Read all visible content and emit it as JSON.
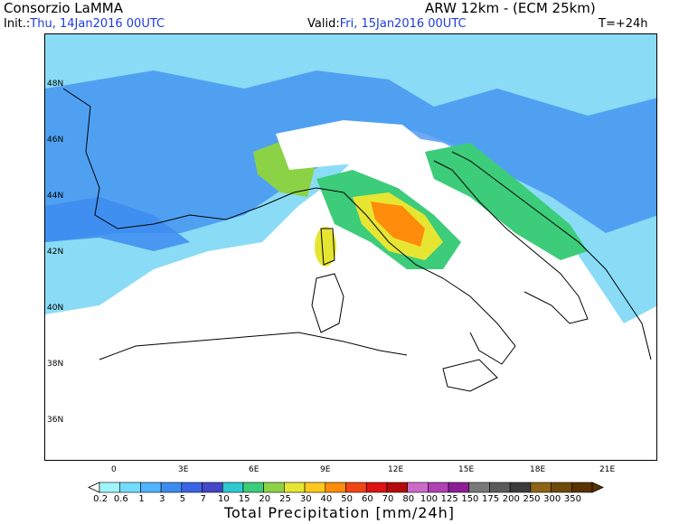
{
  "header": {
    "org": "Consorzio LaMMA",
    "model": "ARW 12km - (ECM 25km)",
    "init_label": "Init.:",
    "init_value": "Thu, 14Jan2016 00UTC",
    "valid_label": "Valid:",
    "valid_value": "Fri, 15Jan2016 00UTC",
    "lead": "T=+24h"
  },
  "axes": {
    "lat_labels": [
      "48N",
      "46N",
      "44N",
      "42N",
      "40N",
      "38N",
      "36N"
    ],
    "lon_labels": [
      "0",
      "3E",
      "6E",
      "9E",
      "12E",
      "15E",
      "18E",
      "21E"
    ]
  },
  "colorbar": {
    "title": "Total Precipitation [mm/24h]",
    "levels": [
      "0.2",
      "0.6",
      "1",
      "3",
      "5",
      "7",
      "10",
      "15",
      "20",
      "25",
      "30",
      "40",
      "50",
      "60",
      "70",
      "80",
      "100",
      "125",
      "150",
      "175",
      "200",
      "250",
      "300",
      "350"
    ],
    "colors": [
      "#9ff5ff",
      "#73dcff",
      "#50b4ff",
      "#3c8cf0",
      "#3a64e6",
      "#4646c8",
      "#2ec8d2",
      "#3ccc7a",
      "#8cd246",
      "#e6e632",
      "#ffc81e",
      "#ff8c0a",
      "#f04614",
      "#dc1414",
      "#b40a0a",
      "#cc6ac8",
      "#b040b4",
      "#8c1e96",
      "#787878",
      "#5a5a5a",
      "#3c3c3c",
      "#8c6414",
      "#6e4a0a",
      "#5a3200"
    ]
  },
  "map_legend": {
    "precip_light": "#78dcf5",
    "precip_medium": "#3c8cf0",
    "precip_strong": "#4646c8",
    "precip_heavy": "#3ccc7a",
    "precip_extreme": "#ff8c0a"
  }
}
